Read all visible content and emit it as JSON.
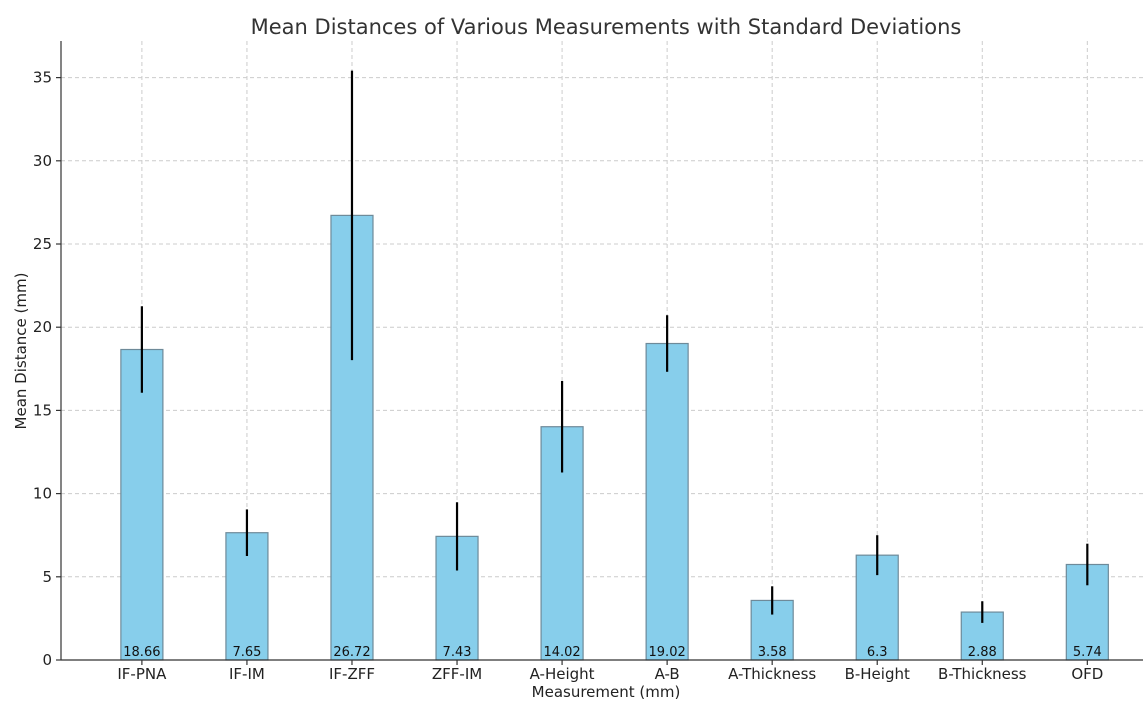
{
  "chart_data": {
    "type": "bar",
    "title": "Mean Distances of Various Measurements with Standard Deviations",
    "xlabel": "Measurement (mm)",
    "ylabel": "Mean Distance (mm)",
    "ylim": [
      0,
      37.2
    ],
    "yticks": [
      0,
      5,
      10,
      15,
      20,
      25,
      30,
      35
    ],
    "grid": true,
    "categories": [
      "IF-PNA",
      "IF-IM",
      "IF-ZFF",
      "ZFF-IM",
      "A-Height",
      "A-B",
      "A-Thickness",
      "B-Height",
      "B-Thickness",
      "OFD"
    ],
    "values": [
      18.66,
      7.65,
      26.72,
      7.43,
      14.02,
      19.02,
      3.58,
      6.3,
      2.88,
      5.74
    ],
    "value_labels": [
      "18.66",
      "7.65",
      "26.72",
      "7.43",
      "14.02",
      "19.02",
      "3.58",
      "6.3",
      "2.88",
      "5.74"
    ],
    "errors": [
      2.6,
      1.4,
      8.7,
      2.05,
      2.75,
      1.7,
      0.85,
      1.2,
      0.65,
      1.25
    ],
    "bar_color": "#87ceeb",
    "bar_edge_color": "#6e8a99",
    "error_color": "#000000"
  }
}
